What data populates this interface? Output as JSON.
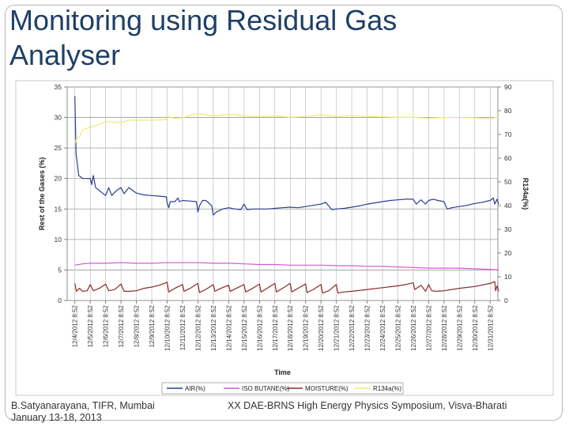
{
  "slide": {
    "title_line1": "Monitoring using Residual Gas",
    "title_line2": "Analyser",
    "footer_left_line1": "B.Satyanarayana, TIFR, Mumbai",
    "footer_left_line2": "January 13-18, 2013",
    "footer_right": "XX DAE-BRNS High Energy Physics Symposium, Visva-Bharati"
  },
  "chart_data": {
    "type": "line",
    "title": "",
    "xlabel": "Time",
    "ylabel": "Rest of the Gases (%)",
    "y2label": "R134a(%)",
    "ylim": [
      0,
      35
    ],
    "y2lim": [
      0,
      90
    ],
    "yticks": [
      0,
      5,
      10,
      15,
      20,
      25,
      30,
      35
    ],
    "y2ticks": [
      0,
      10,
      20,
      30,
      40,
      50,
      60,
      70,
      80,
      90
    ],
    "grid": true,
    "legend_position": "bottom",
    "categories": [
      "12/4/2012 8:52",
      "12/5/2012 8:52",
      "12/6/2012 8:52",
      "12/7/2012 8:52",
      "12/8/2012 8:52",
      "12/9/2012 8:52",
      "12/10/2012 8:52",
      "12/11/2012 8:52",
      "12/12/2012 8:52",
      "12/13/2012 8:52",
      "12/14/2012 8:52",
      "12/15/2012 8:52",
      "12/16/2012 8:52",
      "12/17/2012 8:52",
      "12/18/2012 8:52",
      "12/19/2012 8:52",
      "12/20/2012 8:52",
      "12/21/2012 8:52",
      "12/22/2012 8:52",
      "12/23/2012 8:52",
      "12/24/2012 8:52",
      "12/25/2012 8:52",
      "12/26/2012 8:52",
      "12/27/2012 8:52",
      "12/28/2012 8:52",
      "12/29/2012 8:52",
      "12/30/2012 8:52",
      "12/31/2012 8:52"
    ],
    "series": [
      {
        "name": "AIR(%)",
        "color": "#2a3f8f",
        "axis": "left",
        "points": [
          [
            0,
            33.5
          ],
          [
            0.08,
            24
          ],
          [
            0.25,
            20.5
          ],
          [
            0.5,
            20
          ],
          [
            1,
            20
          ],
          [
            1.1,
            19
          ],
          [
            1.2,
            20.5
          ],
          [
            1.35,
            18.5
          ],
          [
            1.6,
            18
          ],
          [
            2,
            17.2
          ],
          [
            2.2,
            18.5
          ],
          [
            2.4,
            17.2
          ],
          [
            2.7,
            18
          ],
          [
            3,
            18.5
          ],
          [
            3.2,
            17.5
          ],
          [
            3.5,
            18.5
          ],
          [
            4,
            17.6
          ],
          [
            4.5,
            17.3
          ],
          [
            5,
            17.2
          ],
          [
            5.5,
            17.1
          ],
          [
            5.95,
            17
          ],
          [
            6.0,
            16
          ],
          [
            6.1,
            15.2
          ],
          [
            6.2,
            16.2
          ],
          [
            6.5,
            16.2
          ],
          [
            6.7,
            16.8
          ],
          [
            6.8,
            16.2
          ],
          [
            7,
            16.4
          ],
          [
            7.5,
            16.3
          ],
          [
            7.9,
            16.2
          ],
          [
            8,
            14.5
          ],
          [
            8.1,
            15.5
          ],
          [
            8.3,
            16.4
          ],
          [
            8.5,
            16.4
          ],
          [
            8.7,
            16
          ],
          [
            8.9,
            15.5
          ],
          [
            9,
            14
          ],
          [
            9.2,
            14.5
          ],
          [
            9.6,
            15
          ],
          [
            10,
            15.2
          ],
          [
            10.4,
            15
          ],
          [
            10.8,
            14.9
          ],
          [
            11,
            15.8
          ],
          [
            11.2,
            14.9
          ],
          [
            11.6,
            15
          ],
          [
            12,
            15
          ],
          [
            12.5,
            15
          ],
          [
            13,
            15.1
          ],
          [
            13.5,
            15.2
          ],
          [
            14,
            15.3
          ],
          [
            14.5,
            15.2
          ],
          [
            15,
            15.4
          ],
          [
            15.5,
            15.6
          ],
          [
            16,
            15.8
          ],
          [
            16.3,
            16.1
          ],
          [
            16.5,
            15.5
          ],
          [
            16.7,
            14.9
          ],
          [
            17,
            15
          ],
          [
            17.5,
            15.1
          ],
          [
            18,
            15.3
          ],
          [
            18.5,
            15.5
          ],
          [
            19,
            15.8
          ],
          [
            19.5,
            16
          ],
          [
            20,
            16.2
          ],
          [
            20.5,
            16.4
          ],
          [
            21,
            16.5
          ],
          [
            21.5,
            16.6
          ],
          [
            22,
            16.6
          ],
          [
            22.2,
            15.8
          ],
          [
            22.5,
            16.5
          ],
          [
            22.8,
            15.8
          ],
          [
            23,
            16.4
          ],
          [
            23.3,
            16.6
          ],
          [
            23.6,
            16.4
          ],
          [
            24,
            16.2
          ],
          [
            24.2,
            15
          ],
          [
            24.5,
            15.2
          ],
          [
            25,
            15.4
          ],
          [
            25.5,
            15.6
          ],
          [
            26,
            15.9
          ],
          [
            26.5,
            16.1
          ],
          [
            27,
            16.4
          ],
          [
            27.2,
            16.8
          ],
          [
            27.3,
            15.8
          ],
          [
            27.45,
            16.6
          ],
          [
            27.55,
            15.8
          ]
        ]
      },
      {
        "name": "ISO BUTANE(%)",
        "color": "#d35ad3",
        "axis": "left",
        "points": [
          [
            0,
            5.8
          ],
          [
            0.5,
            6
          ],
          [
            1,
            6.1
          ],
          [
            2,
            6.1
          ],
          [
            3,
            6.2
          ],
          [
            4,
            6.1
          ],
          [
            5,
            6.1
          ],
          [
            6,
            6.2
          ],
          [
            7,
            6.2
          ],
          [
            8,
            6.2
          ],
          [
            9,
            6.1
          ],
          [
            10,
            6.1
          ],
          [
            11,
            6
          ],
          [
            12,
            5.9
          ],
          [
            13,
            5.9
          ],
          [
            14,
            5.8
          ],
          [
            15,
            5.8
          ],
          [
            16,
            5.8
          ],
          [
            17,
            5.7
          ],
          [
            18,
            5.7
          ],
          [
            19,
            5.6
          ],
          [
            20,
            5.6
          ],
          [
            21,
            5.5
          ],
          [
            22,
            5.4
          ],
          [
            23,
            5.3
          ],
          [
            24,
            5.3
          ],
          [
            25,
            5.3
          ],
          [
            26,
            5.2
          ],
          [
            27,
            5.1
          ],
          [
            27.55,
            5.0
          ]
        ]
      },
      {
        "name": "MOISTURE(%)",
        "color": "#8b2a2a",
        "axis": "left",
        "points": [
          [
            0,
            2.8
          ],
          [
            0.1,
            1.5
          ],
          [
            0.3,
            2
          ],
          [
            0.5,
            1.5
          ],
          [
            0.8,
            1.6
          ],
          [
            1,
            2.6
          ],
          [
            1.2,
            1.6
          ],
          [
            1.6,
            2
          ],
          [
            2,
            2.7
          ],
          [
            2.2,
            1.6
          ],
          [
            2.6,
            1.8
          ],
          [
            3,
            2.7
          ],
          [
            3.2,
            1.5
          ],
          [
            3.5,
            1.5
          ],
          [
            4,
            1.6
          ],
          [
            4.5,
            2
          ],
          [
            5,
            2.2
          ],
          [
            5.5,
            2.5
          ],
          [
            6,
            3
          ],
          [
            6.1,
            1.4
          ],
          [
            6.5,
            2
          ],
          [
            7,
            2.6
          ],
          [
            7.1,
            1.5
          ],
          [
            7.5,
            2
          ],
          [
            8,
            2.8
          ],
          [
            8.1,
            1.3
          ],
          [
            8.5,
            1.8
          ],
          [
            9,
            2.6
          ],
          [
            9.1,
            1.5
          ],
          [
            9.5,
            2
          ],
          [
            10,
            2.5
          ],
          [
            10.1,
            1.5
          ],
          [
            10.5,
            2
          ],
          [
            11,
            2.6
          ],
          [
            11.1,
            1.4
          ],
          [
            11.5,
            1.9
          ],
          [
            12,
            2.7
          ],
          [
            12.1,
            1.4
          ],
          [
            12.5,
            2
          ],
          [
            13,
            2.8
          ],
          [
            13.1,
            1.4
          ],
          [
            13.5,
            2
          ],
          [
            14,
            2.8
          ],
          [
            14.1,
            1.4
          ],
          [
            14.5,
            2
          ],
          [
            15,
            2.7
          ],
          [
            15.1,
            1.3
          ],
          [
            15.5,
            1.8
          ],
          [
            16,
            2.6
          ],
          [
            16.1,
            1.2
          ],
          [
            16.5,
            1.6
          ],
          [
            17,
            2.6
          ],
          [
            17.1,
            1.2
          ],
          [
            17.5,
            1.4
          ],
          [
            18,
            1.5
          ],
          [
            19,
            1.8
          ],
          [
            20,
            2.1
          ],
          [
            21,
            2.4
          ],
          [
            21.5,
            2.6
          ],
          [
            22,
            2.9
          ],
          [
            22.1,
            1.8
          ],
          [
            22.5,
            2.5
          ],
          [
            22.8,
            1.5
          ],
          [
            23,
            2.6
          ],
          [
            23.2,
            1.6
          ],
          [
            23.5,
            1.5
          ],
          [
            24,
            1.6
          ],
          [
            25,
            2
          ],
          [
            26,
            2.3
          ],
          [
            27,
            2.8
          ],
          [
            27.3,
            3.1
          ],
          [
            27.35,
            1.6
          ],
          [
            27.45,
            2.4
          ],
          [
            27.55,
            1.5
          ]
        ]
      },
      {
        "name": "R134a(%)",
        "color": "#ecec78",
        "axis": "right",
        "points": [
          [
            0,
            66
          ],
          [
            0.1,
            68
          ],
          [
            0.3,
            69
          ],
          [
            0.5,
            72
          ],
          [
            1,
            73
          ],
          [
            1.5,
            74
          ],
          [
            2,
            75.5
          ],
          [
            3,
            75
          ],
          [
            3.5,
            76
          ],
          [
            4,
            76
          ],
          [
            5,
            76
          ],
          [
            5.9,
            76.2
          ],
          [
            6,
            77.5
          ],
          [
            6.5,
            76.8
          ],
          [
            7,
            77
          ],
          [
            7.5,
            78
          ],
          [
            8,
            78.8
          ],
          [
            9,
            77.8
          ],
          [
            10,
            78.5
          ],
          [
            11,
            77.8
          ],
          [
            12,
            77.5
          ],
          [
            13,
            77.8
          ],
          [
            14,
            77.2
          ],
          [
            15,
            77.6
          ],
          [
            16,
            78.3
          ],
          [
            17,
            77.6
          ],
          [
            18,
            77.9
          ],
          [
            19,
            77.6
          ],
          [
            20,
            77.4
          ],
          [
            21,
            77.2
          ],
          [
            22,
            77.2
          ],
          [
            23,
            76.8
          ],
          [
            24,
            77.2
          ],
          [
            25,
            77.1
          ],
          [
            26,
            77
          ],
          [
            27,
            76.5
          ],
          [
            27.55,
            77.5
          ]
        ]
      }
    ]
  }
}
